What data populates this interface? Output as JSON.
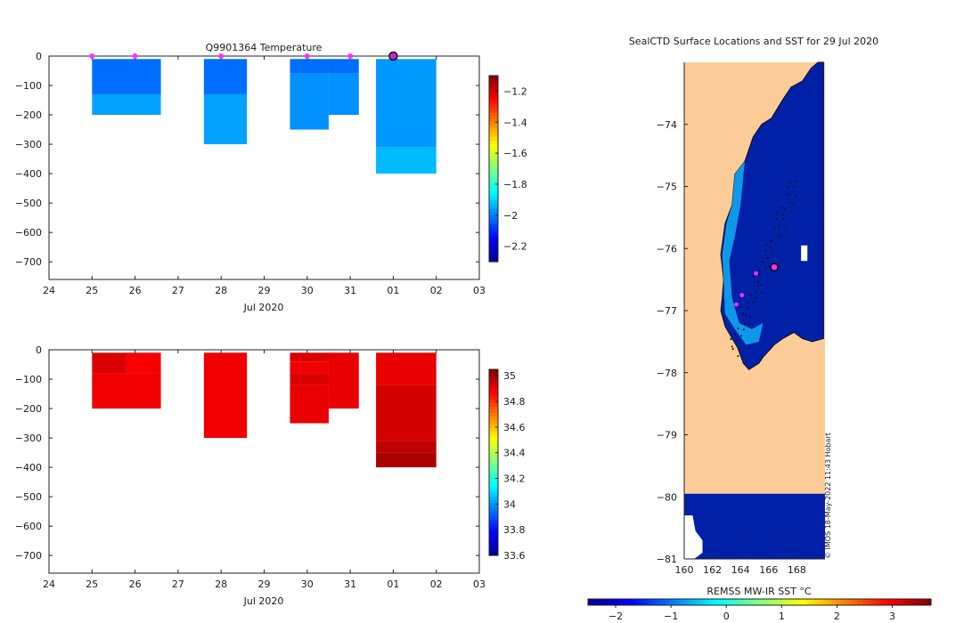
{
  "chart_data": [
    {
      "type": "heatmap",
      "title": "Q9901364  Temperature",
      "xlabel": "Jul 2020",
      "ylabel": "",
      "x_ticks": [
        "24",
        "25",
        "26",
        "27",
        "28",
        "29",
        "30",
        "31",
        "01",
        "02",
        "03"
      ],
      "xlim": [
        24,
        34
      ],
      "y_ticks": [
        0,
        -100,
        -200,
        -300,
        -400,
        -500,
        -600,
        -700
      ],
      "ylim": [
        -760,
        0
      ],
      "colorbar": {
        "min": -2.3,
        "max": -1.1,
        "ticks": [
          -1.2,
          -1.4,
          -1.6,
          -1.8,
          -2,
          -2.2
        ]
      },
      "profile_markers_x": [
        25,
        26,
        28,
        30,
        31,
        32
      ],
      "latest_profile_x": 32,
      "cells": [
        {
          "x0": 25,
          "x1": 26.6,
          "y0": -10,
          "y1": -130,
          "value": -2.02
        },
        {
          "x0": 25,
          "x1": 26.6,
          "y0": -130,
          "y1": -200,
          "value": -1.96
        },
        {
          "x0": 27.6,
          "x1": 28.6,
          "y0": -10,
          "y1": -130,
          "value": -2.02
        },
        {
          "x0": 27.6,
          "x1": 28.6,
          "y0": -130,
          "y1": -300,
          "value": -1.96
        },
        {
          "x0": 29.6,
          "x1": 30.5,
          "y0": -10,
          "y1": -60,
          "value": -2.02
        },
        {
          "x0": 29.6,
          "x1": 30.5,
          "y0": -60,
          "y1": -250,
          "value": -1.98
        },
        {
          "x0": 30.5,
          "x1": 31.2,
          "y0": -10,
          "y1": -60,
          "value": -2.02
        },
        {
          "x0": 30.5,
          "x1": 31.2,
          "y0": -60,
          "y1": -200,
          "value": -1.98
        },
        {
          "x0": 31.6,
          "x1": 33.0,
          "y0": -10,
          "y1": -310,
          "value": -1.97
        },
        {
          "x0": 31.6,
          "x1": 33.0,
          "y0": -310,
          "y1": -400,
          "value": -1.93
        }
      ]
    },
    {
      "type": "heatmap",
      "title": "",
      "xlabel": "Jul 2020",
      "ylabel": "",
      "x_ticks": [
        "24",
        "25",
        "26",
        "27",
        "28",
        "29",
        "30",
        "31",
        "01",
        "02",
        "03"
      ],
      "xlim": [
        24,
        34
      ],
      "y_ticks": [
        0,
        -100,
        -200,
        -300,
        -400,
        -500,
        -600,
        -700
      ],
      "ylim": [
        -760,
        0
      ],
      "colorbar": {
        "min": 33.6,
        "max": 35.05,
        "ticks": [
          35,
          34.8,
          34.6,
          34.4,
          34.2,
          34,
          33.8,
          33.6
        ]
      },
      "cells": [
        {
          "x0": 25,
          "x1": 25.8,
          "y0": -10,
          "y1": -80,
          "value": 34.92
        },
        {
          "x0": 25.8,
          "x1": 26.6,
          "y0": -10,
          "y1": -80,
          "value": 34.88
        },
        {
          "x0": 25,
          "x1": 26.6,
          "y0": -80,
          "y1": -200,
          "value": 34.89
        },
        {
          "x0": 27.6,
          "x1": 28.6,
          "y0": -10,
          "y1": -300,
          "value": 34.89
        },
        {
          "x0": 29.6,
          "x1": 30.5,
          "y0": -10,
          "y1": -40,
          "value": 34.92
        },
        {
          "x0": 29.6,
          "x1": 30.5,
          "y0": -40,
          "y1": -80,
          "value": 34.89
        },
        {
          "x0": 29.6,
          "x1": 30.5,
          "y0": -80,
          "y1": -120,
          "value": 34.92
        },
        {
          "x0": 29.6,
          "x1": 30.5,
          "y0": -120,
          "y1": -250,
          "value": 34.9
        },
        {
          "x0": 30.5,
          "x1": 31.2,
          "y0": -10,
          "y1": -200,
          "value": 34.9
        },
        {
          "x0": 31.6,
          "x1": 33.0,
          "y0": -10,
          "y1": -120,
          "value": 34.9
        },
        {
          "x0": 31.6,
          "x1": 33.0,
          "y0": -120,
          "y1": -310,
          "value": 34.93
        },
        {
          "x0": 31.6,
          "x1": 33.0,
          "y0": -310,
          "y1": -350,
          "value": 34.96
        },
        {
          "x0": 31.6,
          "x1": 33.0,
          "y0": -350,
          "y1": -400,
          "value": 34.99
        }
      ]
    },
    {
      "type": "heatmap",
      "title": "SealCTD Surface Locations and SST for 29 Jul 2020",
      "xlabel": "",
      "ylabel": "",
      "x_ticks": [
        160,
        162,
        164,
        166,
        168
      ],
      "xlim": [
        160,
        170
      ],
      "y_ticks": [
        -74,
        -75,
        -76,
        -77,
        -78,
        -79,
        -80,
        -81
      ],
      "ylim": [
        -81,
        -73
      ],
      "colorbar_label": "REMSS MW-IR SST °C",
      "colorbar": {
        "min": -2.5,
        "max": 3.7,
        "ticks": [
          -2,
          -1,
          0,
          1,
          2,
          3
        ]
      },
      "sea_ice_color": "#fccc98",
      "sea_color": "#0020a8",
      "magenta_points": [
        [
          165.1,
          -76.4
        ],
        [
          164.1,
          -76.75
        ],
        [
          163.7,
          -76.9
        ]
      ],
      "latest_point": [
        166.4,
        -76.3
      ]
    }
  ],
  "credit": "© IMOS 18-May-2022 11:43 Hobart"
}
